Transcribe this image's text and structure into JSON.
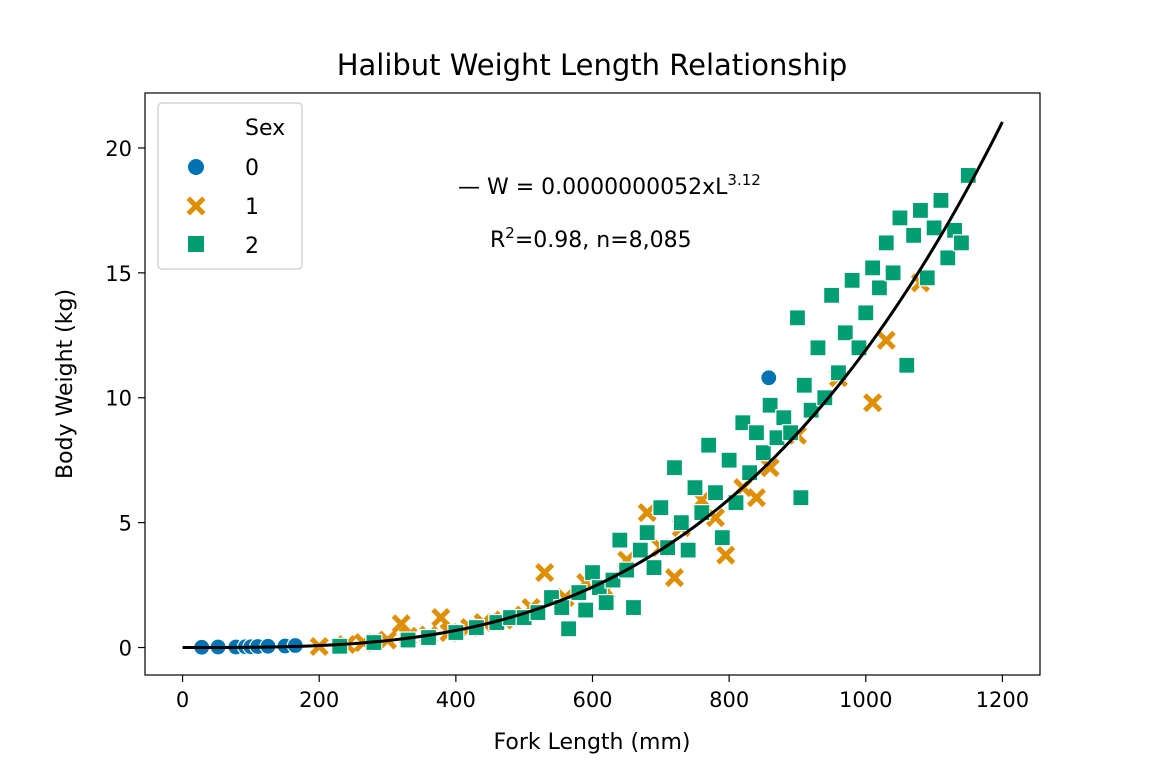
{
  "chart_data": {
    "type": "scatter",
    "title": "Halibut Weight Length Relationship",
    "xlabel": "Fork Length (mm)",
    "ylabel": "Body Weight (kg)",
    "xlim": [
      -55,
      1255
    ],
    "ylim": [
      -1.1,
      22.2
    ],
    "xticks": [
      0,
      200,
      400,
      600,
      800,
      1000,
      1200
    ],
    "yticks": [
      0,
      5,
      10,
      15,
      20
    ],
    "grid": false,
    "legend": {
      "title": "Sex",
      "position": "top-left",
      "entries": [
        {
          "label": "0",
          "marker": "circle",
          "color": "#0173b2"
        },
        {
          "label": "1",
          "marker": "x",
          "color": "#de8f05"
        },
        {
          "label": "2",
          "marker": "square",
          "color": "#029e73"
        }
      ]
    },
    "fit": {
      "a": 5.2e-09,
      "b": 3.12,
      "x_range": [
        0,
        1200
      ],
      "color": "#000000",
      "label_prefix": "— W = 0.0000000052xL",
      "label_exp": "3.12",
      "r2_base": "R",
      "r2_sup": "2",
      "r2_rest": "=0.98, n=8,085"
    },
    "series": [
      {
        "name": "0",
        "marker": "circle",
        "color": "#0173b2",
        "points": [
          [
            28,
            0.01
          ],
          [
            52,
            0.02
          ],
          [
            78,
            0.02
          ],
          [
            92,
            0.03
          ],
          [
            100,
            0.03
          ],
          [
            110,
            0.04
          ],
          [
            125,
            0.05
          ],
          [
            150,
            0.06
          ],
          [
            165,
            0.08
          ],
          [
            858,
            10.8
          ]
        ]
      },
      {
        "name": "1",
        "marker": "x",
        "color": "#de8f05",
        "points": [
          [
            200,
            0.04
          ],
          [
            240,
            0.12
          ],
          [
            265,
            0.2
          ],
          [
            300,
            0.3
          ],
          [
            320,
            0.95
          ],
          [
            330,
            0.45
          ],
          [
            360,
            0.5
          ],
          [
            378,
            1.2
          ],
          [
            390,
            0.6
          ],
          [
            420,
            0.8
          ],
          [
            440,
            1.0
          ],
          [
            470,
            1.1
          ],
          [
            500,
            1.3
          ],
          [
            510,
            1.6
          ],
          [
            530,
            3.0
          ],
          [
            560,
            2.0
          ],
          [
            590,
            2.6
          ],
          [
            620,
            2.3
          ],
          [
            650,
            3.5
          ],
          [
            680,
            5.4
          ],
          [
            700,
            4.0
          ],
          [
            720,
            2.8
          ],
          [
            730,
            4.8
          ],
          [
            760,
            5.9
          ],
          [
            780,
            5.2
          ],
          [
            795,
            3.7
          ],
          [
            820,
            6.4
          ],
          [
            840,
            6.0
          ],
          [
            860,
            7.2
          ],
          [
            900,
            8.5
          ],
          [
            960,
            10.8
          ],
          [
            1010,
            9.8
          ],
          [
            1030,
            12.3
          ],
          [
            1080,
            14.6
          ]
        ]
      },
      {
        "name": "2",
        "marker": "square",
        "color": "#029e73",
        "points": [
          [
            230,
            0.05
          ],
          [
            280,
            0.2
          ],
          [
            330,
            0.3
          ],
          [
            360,
            0.4
          ],
          [
            400,
            0.6
          ],
          [
            430,
            0.8
          ],
          [
            460,
            1.0
          ],
          [
            480,
            1.2
          ],
          [
            500,
            1.2
          ],
          [
            520,
            1.4
          ],
          [
            540,
            2.0
          ],
          [
            555,
            1.6
          ],
          [
            565,
            0.75
          ],
          [
            580,
            2.2
          ],
          [
            590,
            1.5
          ],
          [
            600,
            3.0
          ],
          [
            610,
            2.4
          ],
          [
            620,
            1.8
          ],
          [
            630,
            2.7
          ],
          [
            640,
            4.3
          ],
          [
            650,
            3.1
          ],
          [
            660,
            1.6
          ],
          [
            670,
            3.9
          ],
          [
            680,
            4.6
          ],
          [
            690,
            3.2
          ],
          [
            700,
            5.6
          ],
          [
            710,
            4.0
          ],
          [
            720,
            7.2
          ],
          [
            730,
            5.0
          ],
          [
            740,
            3.9
          ],
          [
            750,
            6.4
          ],
          [
            760,
            5.4
          ],
          [
            770,
            8.1
          ],
          [
            780,
            6.2
          ],
          [
            790,
            4.4
          ],
          [
            800,
            7.5
          ],
          [
            810,
            5.8
          ],
          [
            820,
            9.0
          ],
          [
            830,
            7.0
          ],
          [
            840,
            8.6
          ],
          [
            850,
            7.8
          ],
          [
            860,
            9.7
          ],
          [
            870,
            8.4
          ],
          [
            880,
            9.2
          ],
          [
            890,
            8.6
          ],
          [
            900,
            13.2
          ],
          [
            905,
            6.0
          ],
          [
            910,
            10.5
          ],
          [
            920,
            9.5
          ],
          [
            930,
            12.0
          ],
          [
            940,
            10.0
          ],
          [
            950,
            14.1
          ],
          [
            960,
            11.0
          ],
          [
            970,
            12.6
          ],
          [
            980,
            14.7
          ],
          [
            990,
            12.0
          ],
          [
            1000,
            13.4
          ],
          [
            1010,
            15.2
          ],
          [
            1020,
            14.4
          ],
          [
            1030,
            16.2
          ],
          [
            1040,
            15.0
          ],
          [
            1050,
            17.2
          ],
          [
            1060,
            11.3
          ],
          [
            1070,
            16.5
          ],
          [
            1080,
            17.5
          ],
          [
            1090,
            14.8
          ],
          [
            1100,
            16.8
          ],
          [
            1110,
            17.9
          ],
          [
            1120,
            15.6
          ],
          [
            1130,
            16.7
          ],
          [
            1140,
            16.2
          ],
          [
            1150,
            18.9
          ]
        ]
      }
    ]
  }
}
